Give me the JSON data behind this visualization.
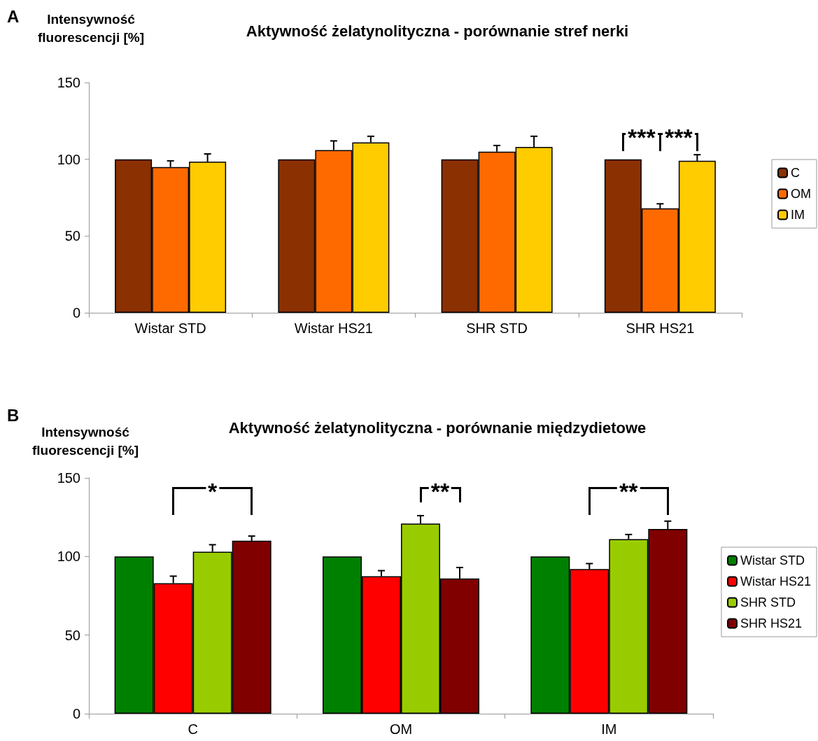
{
  "chart_data": [
    {
      "type": "bar",
      "title": "Aktywność żelatynolityczna - porównanie stref nerki",
      "ylabel": "Intensywność fluorescencji [%]",
      "categories": [
        "Wistar STD",
        "Wistar HS21",
        "SHR STD",
        "SHR HS21"
      ],
      "series": [
        {
          "name": "C",
          "color": "#8b3000",
          "values": [
            100,
            100,
            100,
            100
          ],
          "errors": [
            null,
            null,
            null,
            null
          ]
        },
        {
          "name": "OM",
          "color": "#ff6a00",
          "values": [
            95,
            106,
            105,
            68
          ],
          "errors": [
            4,
            6,
            4,
            3
          ]
        },
        {
          "name": "IM",
          "color": "#ffcc00",
          "values": [
            98.5,
            111,
            108,
            99
          ],
          "errors": [
            5,
            4,
            7,
            4
          ]
        }
      ],
      "ylim": [
        0,
        150
      ],
      "yticks": [
        0,
        50,
        100,
        150
      ],
      "legend": "right",
      "grid": false,
      "annotations": [
        "A",
        "***",
        "***"
      ]
    },
    {
      "type": "bar",
      "title": "Aktywność żelatynolityczna - porównanie międzydietowe",
      "ylabel": "Intensywność fluorescencji [%]",
      "categories": [
        "C",
        "OM",
        "IM"
      ],
      "series": [
        {
          "name": "Wistar STD",
          "color": "#008000",
          "values": [
            100,
            100,
            100
          ],
          "errors": [
            null,
            null,
            null
          ]
        },
        {
          "name": "Wistar HS21",
          "color": "#ff0000",
          "values": [
            83,
            87.5,
            92
          ],
          "errors": [
            4.5,
            3.5,
            3.5
          ]
        },
        {
          "name": "SHR STD",
          "color": "#99cc00",
          "values": [
            103,
            121,
            111
          ],
          "errors": [
            4.5,
            5,
            3
          ]
        },
        {
          "name": "SHR HS21",
          "color": "#800000",
          "values": [
            110,
            86,
            117.5
          ],
          "errors": [
            3,
            7,
            5
          ]
        }
      ],
      "ylim": [
        0,
        150
      ],
      "yticks": [
        0,
        50,
        100,
        150
      ],
      "legend": "right",
      "grid": false,
      "annotations": [
        "B",
        "*",
        "**",
        "**"
      ]
    }
  ]
}
